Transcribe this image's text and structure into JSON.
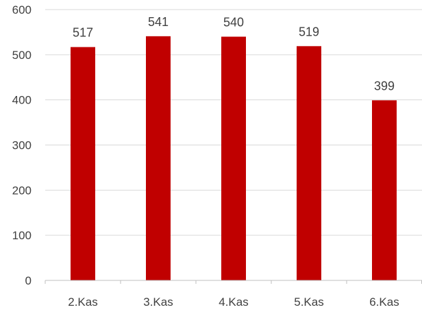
{
  "chart_data": {
    "type": "bar",
    "categories": [
      "2.Kas",
      "3.Kas",
      "4.Kas",
      "5.Kas",
      "6.Kas"
    ],
    "values": [
      517,
      541,
      540,
      519,
      399
    ],
    "data_labels": [
      "517",
      "541",
      "540",
      "519",
      "399"
    ],
    "title": "",
    "xlabel": "",
    "ylabel": "",
    "ylim": [
      0,
      600
    ],
    "yticks": [
      0,
      100,
      200,
      300,
      400,
      500,
      600
    ],
    "ytick_labels": [
      "0",
      "100",
      "200",
      "300",
      "400",
      "500",
      "600"
    ],
    "grid": true,
    "legend": "none",
    "bar_color": "#c00000",
    "grid_color": "#d9d9d9",
    "text_color": "#404040"
  }
}
